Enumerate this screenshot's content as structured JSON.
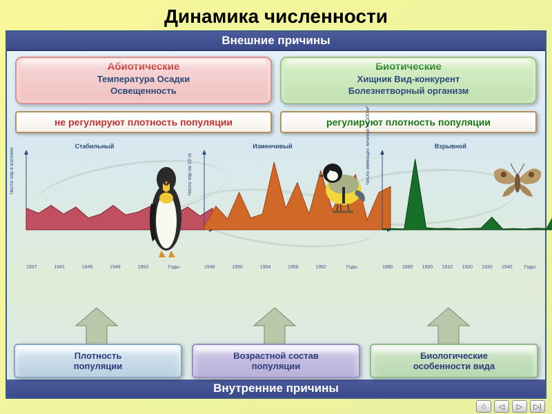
{
  "title": "Динамика численности",
  "external": {
    "banner": "Внешние причины",
    "abiotic": {
      "title": "Абиотические",
      "items": "Температура  Осадки\nОсвещенность"
    },
    "biotic": {
      "title": "Биотические",
      "items": "Хищник  Вид-конкурент\nБолезнетворный организм"
    },
    "noreg": "не регулируют плотность популяции",
    "yesreg_main": "регулируют плотность",
    "yesreg_pop": "популяции"
  },
  "charts": {
    "stable": {
      "title": "Стабильный",
      "ylabel": "Число пар в колонии",
      "xlabel": "Годы",
      "xticks": [
        "1937",
        "1941",
        "1945",
        "1949",
        "1953"
      ],
      "data": [
        55,
        42,
        62,
        40,
        58,
        30,
        40,
        62,
        38,
        45,
        60,
        50,
        40,
        58,
        35,
        55
      ],
      "fill": "#c05060",
      "stroke": "#802030",
      "xlim": [
        0,
        16
      ],
      "ylim": [
        0,
        200
      ]
    },
    "variable": {
      "title": "Изменчивый",
      "ylabel": "Число пар на 10 га",
      "xlabel": "Годы",
      "xticks": [
        "1946",
        "1950",
        "1954",
        "1958",
        "1962"
      ],
      "data": [
        10,
        60,
        28,
        95,
        30,
        40,
        172,
        55,
        120,
        40,
        150,
        50,
        110,
        140,
        25,
        95,
        110
      ],
      "fill": "#d06828",
      "stroke": "#a04010",
      "xlim": [
        0,
        17
      ],
      "ylim": [
        0,
        200
      ]
    },
    "explosive": {
      "title": "Взрывной",
      "ylabel": "Число имеющих личинки на 100 м²",
      "xlabel": "Годы",
      "xticks": [
        "1880",
        "1890",
        "1900",
        "1910",
        "1920",
        "1930",
        "1940"
      ],
      "data": [
        2,
        3,
        2,
        180,
        5,
        3,
        4,
        2,
        3,
        4,
        32,
        2,
        3,
        2,
        4,
        3,
        55,
        3
      ],
      "fill": "#187028",
      "stroke": "#0a4018",
      "xlim": [
        0,
        18
      ],
      "ylim": [
        0,
        200
      ]
    },
    "axis_color": "#2a4a7a"
  },
  "internal": {
    "banner": "Внутренние причины",
    "density": "Плотность\nпопуляции",
    "age": "Возрастной состав\nпопуляции",
    "biofeat": "Биологические\nособенности вида"
  },
  "arrow": {
    "fill": "#b8c8a8",
    "stroke": "#788868"
  },
  "nav": {
    "home": "⌂",
    "prev": "◁",
    "next": "▷",
    "end": "▷|"
  }
}
